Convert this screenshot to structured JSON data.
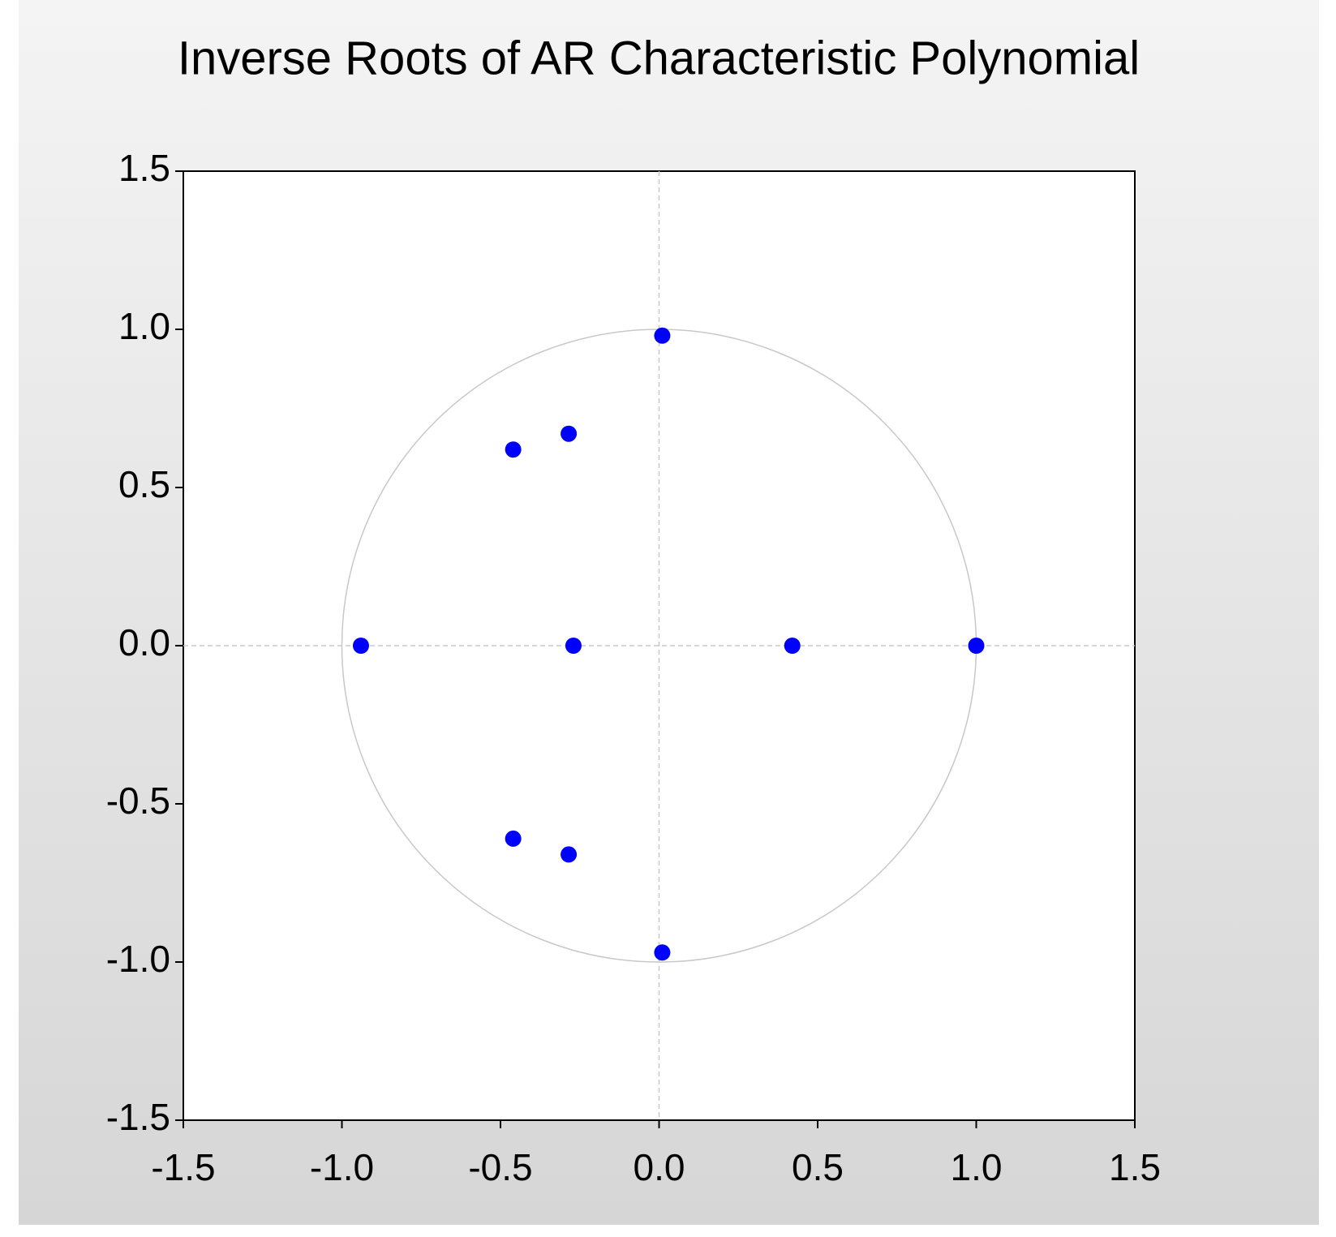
{
  "chart_data": {
    "type": "scatter",
    "title": "Inverse Roots of AR Characteristic Polynomial",
    "x": [
      0.01,
      -0.46,
      -0.285,
      -0.94,
      -0.27,
      0.42,
      1.0,
      -0.46,
      -0.285,
      0.01
    ],
    "values": [
      0.98,
      0.62,
      0.67,
      0,
      0,
      0,
      0,
      -0.61,
      -0.66,
      -0.97
    ],
    "color": "#0000ff",
    "xlim": [
      -1.5,
      1.5
    ],
    "ylim": [
      -1.5,
      1.5
    ],
    "xticks": [
      -1.5,
      {
        "value": -1,
        "label": "-1.0"
      },
      -0.5,
      {
        "value": 0,
        "label": "0.0"
      },
      0.5,
      {
        "value": 1,
        "label": "1.0"
      },
      1.5
    ],
    "yticks": [
      -1.5,
      {
        "value": -1,
        "label": "-1.0"
      },
      -0.5,
      {
        "value": 0,
        "label": "0.0"
      },
      0.5,
      {
        "value": 1,
        "label": "1.0"
      },
      1.5
    ],
    "unit_circle": true,
    "zero_lines": true
  }
}
